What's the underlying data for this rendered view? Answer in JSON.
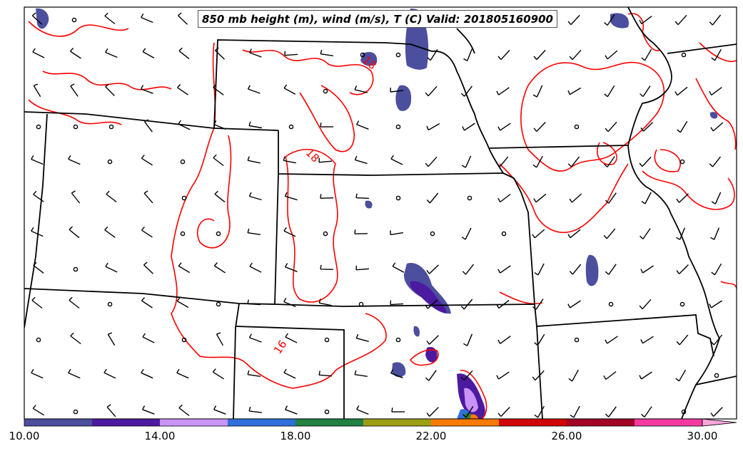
{
  "title": "850 mb height (m), wind (m/s), T (C) Valid: 201805160900",
  "contour_labels": [
    "18",
    "18",
    "16"
  ],
  "colorbar": {
    "ticks": [
      "10.00",
      "14.00",
      "18.00",
      "22.00",
      "26.00",
      "30.00"
    ],
    "colors": [
      "#4b4f9e",
      "#4c1aa0",
      "#c994f8",
      "#2f6fdc",
      "#228042",
      "#9c9e16",
      "#fb7a06",
      "#d10606",
      "#a20423",
      "#f23aa0",
      "#f9a7db"
    ]
  },
  "colors": {
    "isotherm": "#ff0000",
    "boundary": "#000000",
    "wind_barb": "#000000"
  }
}
